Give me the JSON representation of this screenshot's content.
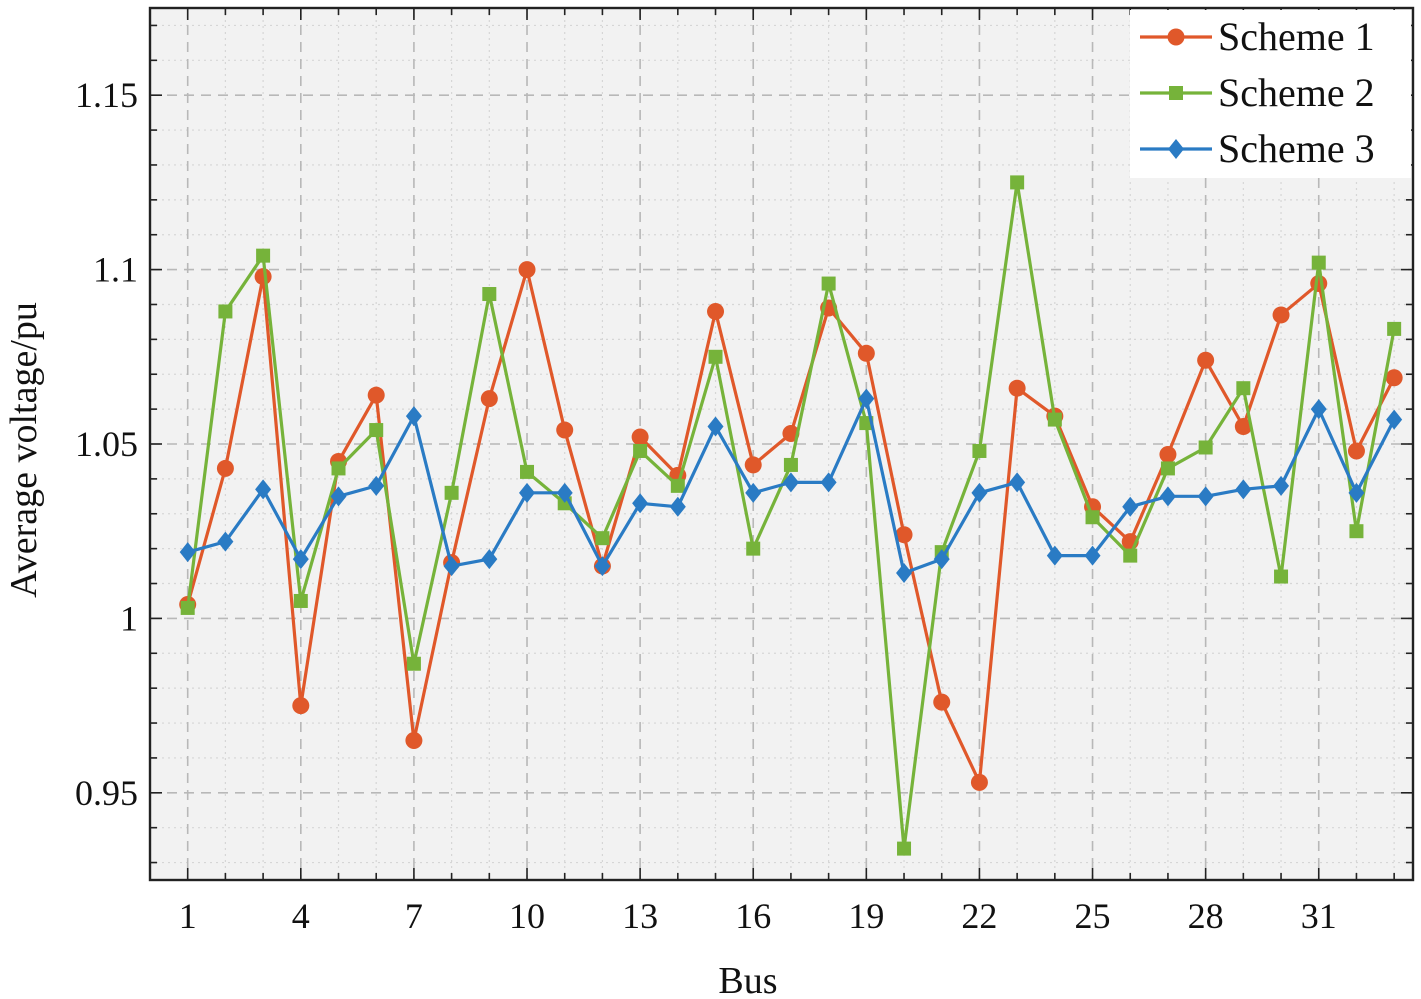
{
  "chart_data": {
    "type": "line",
    "title": "",
    "xlabel": "Bus",
    "ylabel": "Average voltage/pu",
    "xlim": [
      0,
      33.5
    ],
    "ylim": [
      0.925,
      1.175
    ],
    "xticks": [
      1,
      4,
      7,
      10,
      13,
      16,
      19,
      22,
      25,
      28,
      31
    ],
    "yticks": [
      0.95,
      1,
      1.05,
      1.1,
      1.15
    ],
    "ytick_labels": [
      "0.95",
      "1",
      "1.05",
      "1.1",
      "1.15"
    ],
    "grid": true,
    "legend_position": "top-right",
    "x": [
      1,
      2,
      3,
      4,
      5,
      6,
      7,
      8,
      9,
      10,
      11,
      12,
      13,
      14,
      15,
      16,
      17,
      18,
      19,
      20,
      21,
      22,
      23,
      24,
      25,
      26,
      27,
      28,
      29,
      30,
      31,
      32,
      33
    ],
    "series": [
      {
        "name": "Scheme 1",
        "color": "#e0582a",
        "marker": "circle",
        "values": [
          1.004,
          1.043,
          1.098,
          0.975,
          1.045,
          1.064,
          0.965,
          1.016,
          1.063,
          1.1,
          1.054,
          1.015,
          1.052,
          1.041,
          1.088,
          1.044,
          1.053,
          1.089,
          1.076,
          1.024,
          0.976,
          0.953,
          1.066,
          1.058,
          1.032,
          1.022,
          1.047,
          1.074,
          1.055,
          1.087,
          1.096,
          1.048,
          1.069
        ]
      },
      {
        "name": "Scheme 2",
        "color": "#76b33a",
        "marker": "square",
        "values": [
          1.003,
          1.088,
          1.104,
          1.005,
          1.043,
          1.054,
          0.987,
          1.036,
          1.093,
          1.042,
          1.033,
          1.023,
          1.048,
          1.038,
          1.075,
          1.02,
          1.044,
          1.096,
          1.056,
          0.934,
          1.019,
          1.048,
          1.125,
          1.057,
          1.029,
          1.018,
          1.043,
          1.049,
          1.066,
          1.012,
          1.102,
          1.025,
          1.083
        ]
      },
      {
        "name": "Scheme 3",
        "color": "#2a7bc4",
        "marker": "diamond",
        "values": [
          1.019,
          1.022,
          1.037,
          1.017,
          1.035,
          1.038,
          1.058,
          1.015,
          1.017,
          1.036,
          1.036,
          1.015,
          1.033,
          1.032,
          1.055,
          1.036,
          1.039,
          1.039,
          1.063,
          1.013,
          1.017,
          1.036,
          1.039,
          1.018,
          1.018,
          1.032,
          1.035,
          1.035,
          1.037,
          1.038,
          1.06,
          1.036,
          1.057
        ]
      }
    ]
  }
}
